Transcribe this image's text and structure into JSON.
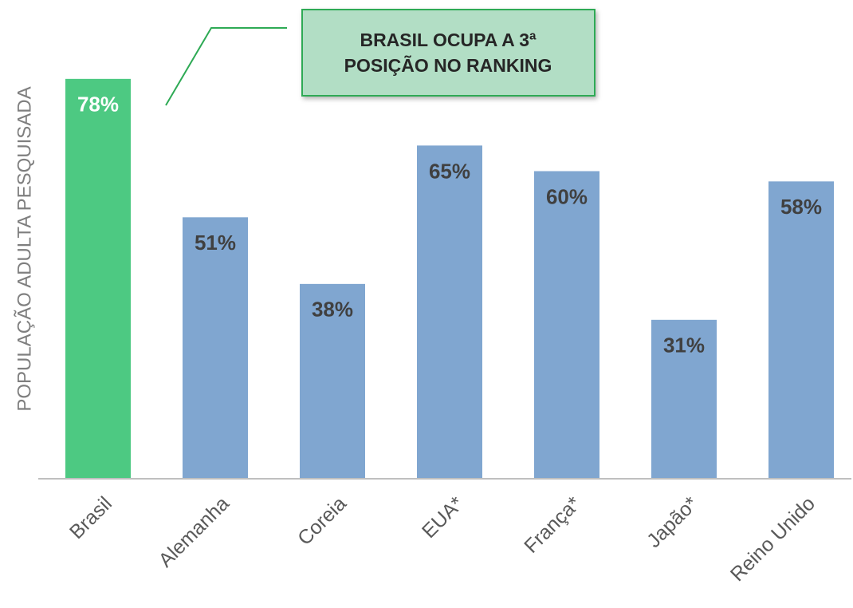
{
  "chart_data": {
    "type": "bar",
    "y_label": "POPULAÇÃO ADULTA PESQUISADA",
    "annotation": [
      "BRASIL OCUPA A 3ª",
      "POSIÇÃO NO RANKING"
    ],
    "categories": [
      "Brasil",
      "Alemanha",
      "Coreia",
      "EUA*",
      "França*",
      "Japão*",
      "Reino Unido"
    ],
    "values": [
      78,
      51,
      38,
      65,
      60,
      31,
      58
    ],
    "value_labels": [
      "78%",
      "51%",
      "38%",
      "65%",
      "60%",
      "31%",
      "58%"
    ],
    "colors": [
      "#4dc982",
      "#80a6d0",
      "#80a6d0",
      "#80a6d0",
      "#80a6d0",
      "#80a6d0",
      "#80a6d0"
    ],
    "label_colors": [
      "#ffffff",
      "#404040",
      "#404040",
      "#404040",
      "#404040",
      "#404040",
      "#404040"
    ],
    "ylim": [
      0,
      80
    ]
  }
}
